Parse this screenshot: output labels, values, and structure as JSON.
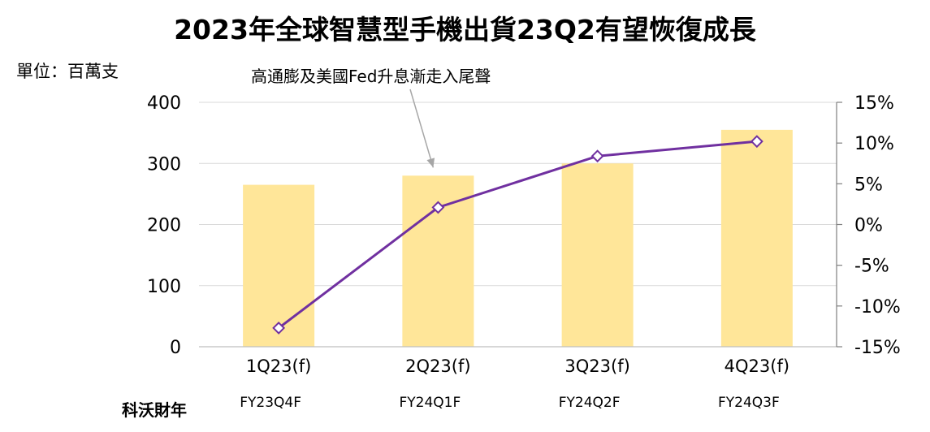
{
  "chart_data": {
    "type": "bar",
    "title": "2023年全球智慧型手機出貨23Q2有望恢復成長",
    "unit_label": "單位：百萬支",
    "categories": [
      "1Q23(f)",
      "2Q23(f)",
      "3Q23(f)",
      "4Q23(f)"
    ],
    "fiscal_label": "科沃財年",
    "fiscal_categories": [
      "FY23Q4F",
      "FY24Q1F",
      "FY24Q2F",
      "FY24Q3F"
    ],
    "series": [
      {
        "type": "bar",
        "axis": "left",
        "values": [
          265,
          280,
          300,
          355
        ],
        "color": "#FFE699"
      },
      {
        "type": "line",
        "axis": "right",
        "values": [
          -12.7,
          2.1,
          8.4,
          10.2
        ],
        "color": "#7030A0"
      }
    ],
    "ylim_left": [
      0,
      400
    ],
    "yticks_left": [
      "0",
      "100",
      "200",
      "300",
      "400"
    ],
    "ylim_right": [
      -15,
      15
    ],
    "yticks_right": [
      "-15%",
      "-10%",
      "-5%",
      "0%",
      "5%",
      "10%",
      "15%"
    ],
    "annotation": {
      "text": "高通膨及美國Fed升息漸走入尾聲",
      "target_category": 1
    },
    "grid": true,
    "legend": "none"
  }
}
